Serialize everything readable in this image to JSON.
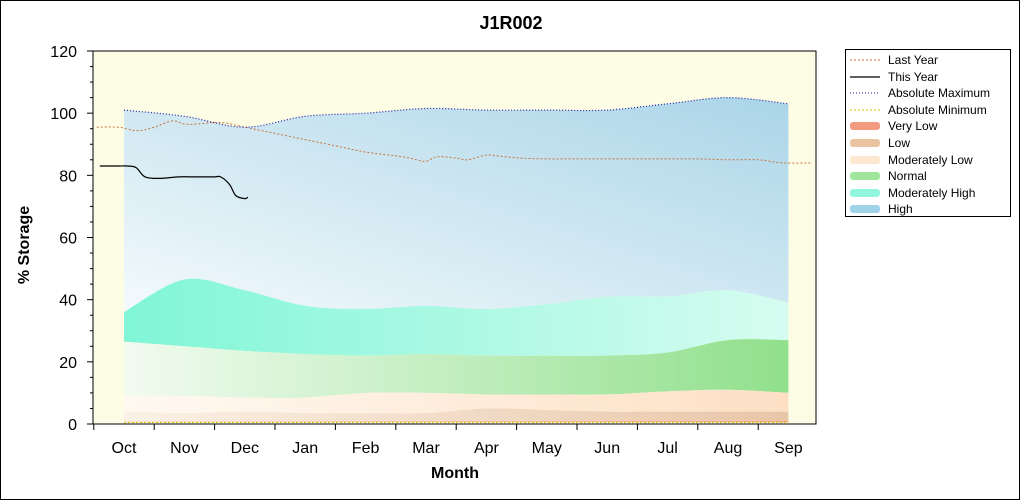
{
  "chart_data": {
    "type": "area",
    "title": "J1R002",
    "xlabel": "Month",
    "ylabel": "% Storage",
    "ylim": [
      0,
      120
    ],
    "yticks": [
      0,
      20,
      40,
      60,
      80,
      100,
      120
    ],
    "months": [
      "Oct",
      "Nov",
      "Dec",
      "Jan",
      "Feb",
      "Mar",
      "Apr",
      "May",
      "Jun",
      "Jul",
      "Aug",
      "Sep"
    ],
    "bands_x": [
      "Oct",
      "Nov",
      "Dec",
      "Jan",
      "Feb",
      "Mar",
      "Apr",
      "May",
      "Jun",
      "Jul",
      "Aug",
      "Sep"
    ],
    "bands": [
      {
        "name": "Very Low",
        "lower": [
          1,
          1,
          1,
          1,
          1,
          1,
          1,
          1,
          1,
          1,
          1,
          1
        ],
        "upper": [
          4,
          3.5,
          4,
          3.5,
          3.5,
          3.5,
          5,
          4.5,
          4,
          4,
          4,
          4
        ]
      },
      {
        "name": "Low",
        "lower": [
          4,
          3.5,
          4,
          3.5,
          3.5,
          3.5,
          5,
          4.5,
          4,
          4,
          4,
          4
        ],
        "upper": [
          9,
          9,
          8.5,
          8.5,
          10,
          10,
          9.5,
          9.5,
          9.5,
          10.5,
          11,
          10
        ]
      },
      {
        "name": "Moderately Low",
        "lower": [
          9,
          9,
          8.5,
          8.5,
          10,
          10,
          9.5,
          9.5,
          9.5,
          10.5,
          11,
          10
        ],
        "upper": [
          26.5,
          25,
          23.5,
          22.5,
          22,
          22.5,
          22,
          22,
          22,
          23,
          27,
          27
        ]
      },
      {
        "name": "Normal",
        "lower": [
          26.5,
          25,
          23.5,
          22.5,
          22,
          22.5,
          22,
          22,
          22,
          23,
          27,
          27
        ],
        "upper": [
          36,
          46.5,
          43,
          38,
          37,
          38,
          37,
          38.5,
          41,
          41,
          43,
          39
        ]
      },
      {
        "name": "Moderately High",
        "lower": [
          36,
          46.5,
          43,
          38,
          37,
          38,
          37,
          38.5,
          41,
          41,
          43,
          39
        ],
        "upper": [
          101,
          99,
          95.5,
          99,
          100,
          101.5,
          101,
          101,
          101,
          103,
          105,
          103
        ]
      },
      {
        "name": "High",
        "lower": [
          101,
          99,
          95.5,
          99,
          100,
          101.5,
          101,
          101,
          101,
          103,
          105,
          103
        ],
        "upper": [
          101,
          99,
          95.5,
          99,
          100,
          101.5,
          101,
          101,
          101,
          103,
          105,
          103
        ]
      }
    ],
    "series": [
      {
        "name": "Last Year",
        "x": [
          -0.45,
          -0.1,
          0.15,
          0.3,
          0.5,
          0.8,
          1.0,
          1.2,
          1.6,
          2.0,
          2.5,
          3.0,
          3.5,
          4.0,
          4.6,
          4.85,
          5.0,
          5.2,
          5.5,
          5.7,
          6.0,
          6.3,
          6.6,
          7.0,
          7.5,
          8.0,
          8.5,
          9.0,
          9.5,
          10.0,
          10.5,
          10.9,
          11.4
        ],
        "values": [
          95.5,
          95.5,
          94.5,
          94.5,
          95.5,
          97.5,
          96.5,
          96.5,
          97,
          95.5,
          93.5,
          91.5,
          89.5,
          87.5,
          86,
          85,
          84.5,
          86,
          85.5,
          85,
          86.5,
          86,
          85.5,
          85.3,
          85.3,
          85.3,
          85.3,
          85.3,
          85.3,
          85,
          85,
          84,
          84
        ]
      },
      {
        "name": "This Year",
        "x": [
          -0.4,
          -0.1,
          0.05,
          0.2,
          0.35,
          0.6,
          0.9,
          1.2,
          1.4,
          1.5,
          1.6,
          1.75,
          1.85,
          2.0,
          2.05
        ],
        "values": [
          83,
          83,
          83,
          82.5,
          79.5,
          79,
          79.5,
          79.5,
          79.5,
          79.5,
          79.5,
          77,
          73.5,
          72.5,
          73
        ]
      },
      {
        "name": "Absolute Maximum",
        "x": [
          "Oct",
          "Nov",
          "Dec",
          "Jan",
          "Feb",
          "Mar",
          "Apr",
          "May",
          "Jun",
          "Jul",
          "Aug",
          "Sep"
        ],
        "values": [
          101,
          99,
          95.5,
          99,
          100,
          101.5,
          101,
          101,
          101,
          103,
          105,
          103
        ]
      },
      {
        "name": "Absolute Minimum",
        "x": [
          "Oct",
          "Nov",
          "Dec",
          "Jan",
          "Feb",
          "Mar",
          "Apr",
          "May",
          "Jun",
          "Jul",
          "Aug",
          "Sep"
        ],
        "values": [
          0.5,
          0.5,
          0.5,
          0.5,
          0.5,
          0.5,
          0.5,
          0.5,
          0.5,
          0.5,
          0.5,
          0.5
        ]
      }
    ],
    "legend": {
      "placement": "right",
      "items": [
        {
          "label": "Last Year",
          "style": "dash",
          "color": "#c8743c"
        },
        {
          "label": "This Year",
          "style": "line",
          "color": "#000000"
        },
        {
          "label": "Absolute Maximum",
          "style": "dot",
          "color": "#1c1ca8"
        },
        {
          "label": "Absolute Minimum",
          "style": "dash",
          "color": "#d8c400"
        },
        {
          "label": "Very Low",
          "style": "fill",
          "color": "#f08a6a"
        },
        {
          "label": "Low",
          "style": "fill",
          "color": "#e6b890"
        },
        {
          "label": "Moderately Low",
          "style": "fill",
          "color": "#fde3c8"
        },
        {
          "label": "Normal",
          "style": "fill",
          "color": "#8ee08a"
        },
        {
          "label": "Moderately High",
          "style": "fill",
          "color": "#7ff5d8"
        },
        {
          "label": "High",
          "style": "fill",
          "color": "#8ecbe6"
        }
      ]
    },
    "colors": {
      "plot_background": "#fdfde5",
      "high_band": "#aad5e8",
      "moderately_high_band": "#80f6d6",
      "normal_band": "#90e08c",
      "moderately_low_band": "#fde0c4",
      "low_band": "#e8c6a8",
      "very_low_band": "#f2a27e",
      "last_year": "#c8743c",
      "this_year": "#000000",
      "absolute_maximum": "#1c1ca8"
    },
    "grid": false
  }
}
